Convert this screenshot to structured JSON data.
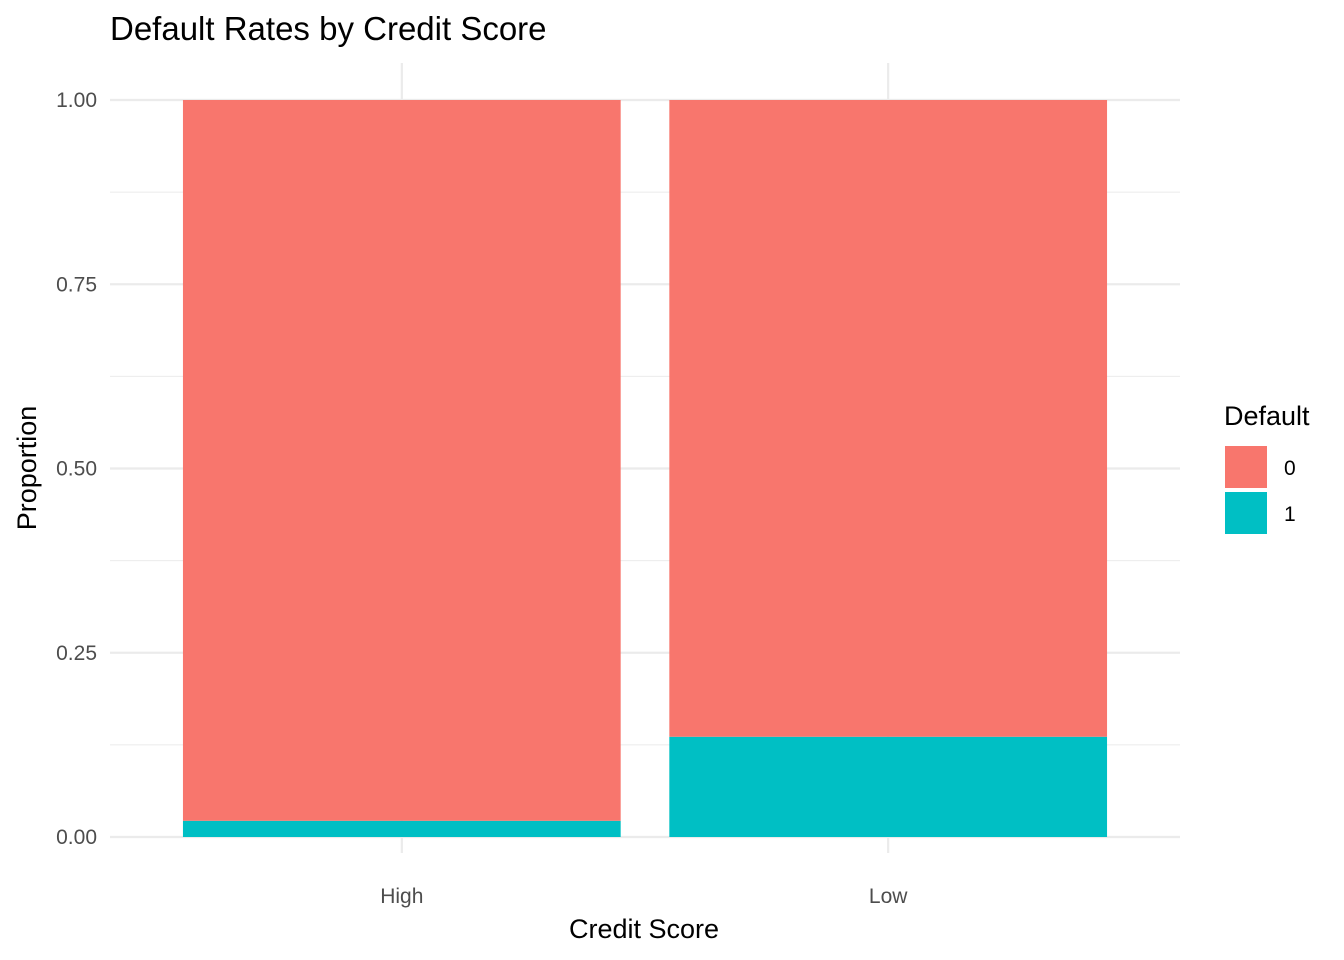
{
  "chart_data": {
    "type": "bar",
    "stacked": true,
    "title": "Default Rates by Credit Score",
    "xlabel": "Credit Score",
    "ylabel": "Proportion",
    "categories": [
      "High",
      "Low"
    ],
    "ylim": [
      0,
      1
    ],
    "yticks": [
      0,
      0.25,
      0.5,
      0.75,
      1
    ],
    "ytick_labels": [
      "0.00",
      "0.25",
      "0.50",
      "0.75",
      "1.00"
    ],
    "grid": true,
    "legend": {
      "title": "Default",
      "position": "right"
    },
    "series": [
      {
        "name": "0",
        "color": "#F8766D",
        "values": [
          0.978,
          0.864
        ]
      },
      {
        "name": "1",
        "color": "#00BFC4",
        "values": [
          0.022,
          0.136
        ]
      }
    ]
  }
}
